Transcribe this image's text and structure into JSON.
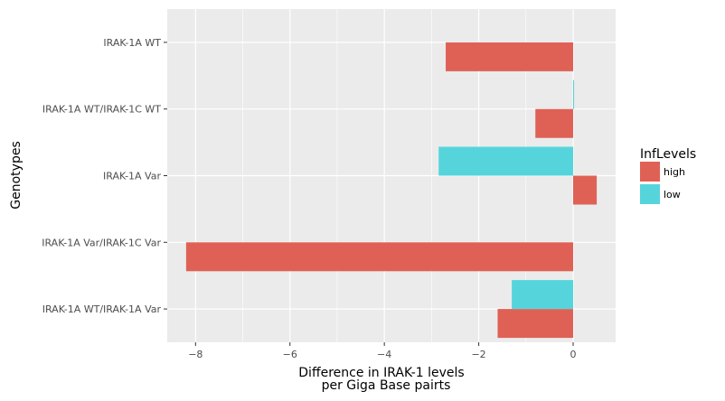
{
  "chart_data": {
    "type": "bar",
    "orientation": "horizontal",
    "xlabel_line1": "Difference in  IRAK-1 levels",
    "xlabel_line2": "per Giga Base pairts",
    "ylabel": "Genotypes",
    "xlim": [
      -8.6,
      0.9
    ],
    "x_ticks": [
      -8,
      -6,
      -4,
      -2,
      0
    ],
    "x_tick_labels": [
      "−8",
      "−6",
      "−4",
      "−2",
      "0"
    ],
    "categories": [
      "IRAK-1A WT",
      "IRAK-1A WT/IRAK-1C WT",
      "IRAK-1A Var",
      "IRAK-1A Var/IRAK-1C Var",
      "IRAK-1A WT/IRAK-1A Var"
    ],
    "series": [
      {
        "name": "high",
        "color": "#df6156",
        "values": [
          -2.7,
          -0.8,
          0.5,
          -8.2,
          -1.6
        ]
      },
      {
        "name": "low",
        "color": "#56d4dc",
        "values": [
          null,
          0.02,
          -2.85,
          null,
          -1.3
        ]
      }
    ],
    "legend": {
      "title": "InfLevels",
      "position": "right"
    },
    "grid": true
  }
}
